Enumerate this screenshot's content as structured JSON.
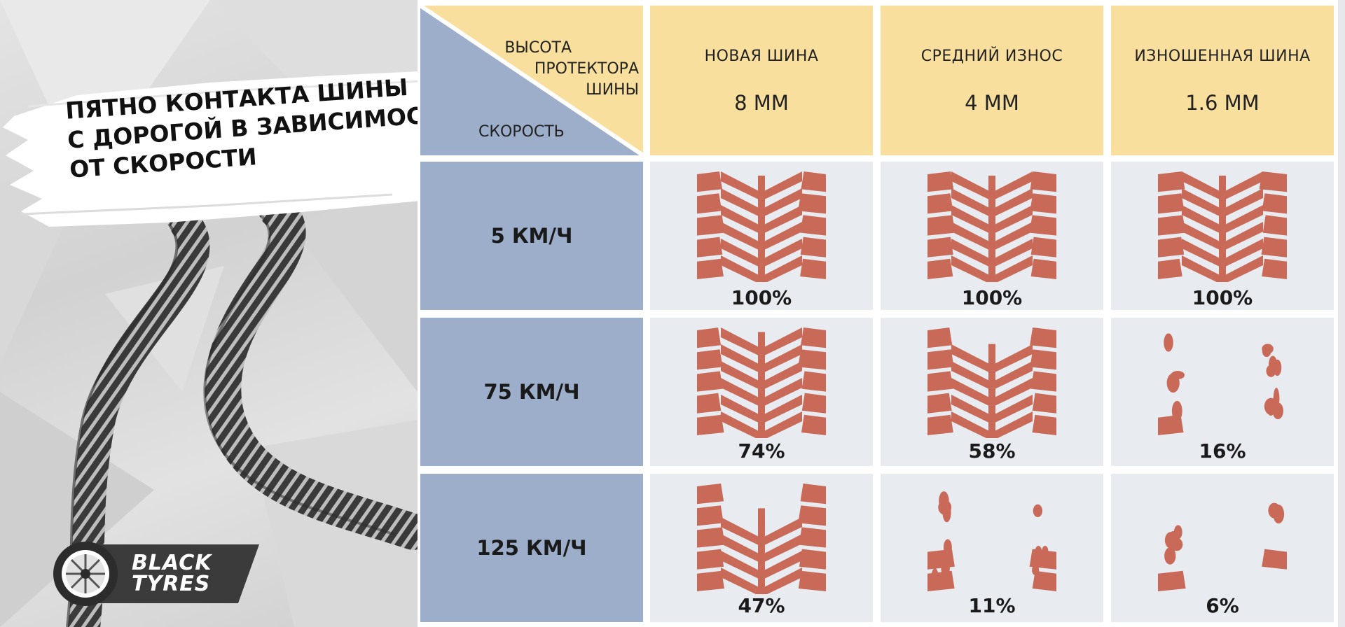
{
  "banner": {
    "title_lines": [
      "ПЯТНО КОНТАКТА ШИНЫ",
      "С ДОРОГОЙ В ЗАВИСИМОСТИ",
      "ОТ СКОРОСТИ"
    ],
    "logo_lines": [
      "BLACK",
      "TYRES"
    ]
  },
  "corner": {
    "tread_label_lines": [
      "ВЫСОТА",
      "ПРОТЕКТОРА",
      "ШИНЫ"
    ],
    "speed_label": "СКОРОСТЬ"
  },
  "columns": [
    {
      "name": "НОВАЯ ШИНА",
      "depth": "8 ММ"
    },
    {
      "name": "СРЕДНИЙ ИЗНОС",
      "depth": "4 ММ"
    },
    {
      "name": "ИЗНОШЕННАЯ ШИНА",
      "depth": "1.6 ММ"
    }
  ],
  "rows": [
    {
      "speed": "5 КМ/Ч",
      "values": [
        "100%",
        "100%",
        "100%"
      ]
    },
    {
      "speed": "75 КМ/Ч",
      "values": [
        "74%",
        "58%",
        "16%"
      ]
    },
    {
      "speed": "125 КМ/Ч",
      "values": [
        "47%",
        "11%",
        "6%"
      ]
    }
  ],
  "colors": {
    "header": "#f9df9d",
    "speed_cell": "#9caec9",
    "data_cell": "#e8ebf0",
    "footprint": "#c96a58"
  },
  "icons": [
    "tyre-track-icon",
    "tyre-logo-icon",
    "tread-footprint-icon"
  ]
}
